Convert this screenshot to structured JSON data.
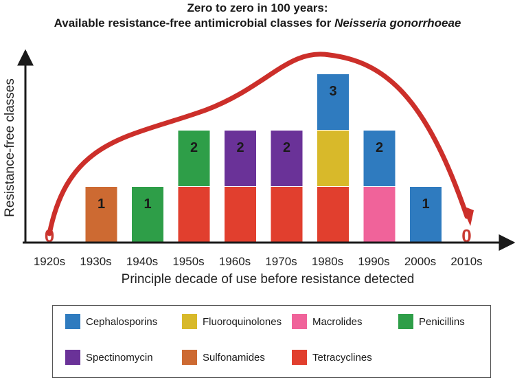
{
  "title_line1": "Zero to zero in 100 years:",
  "title_line2_prefix": "Available resistance-free antimicrobial classes for ",
  "title_line2_italic": "Neisseria gonorrhoeae",
  "colors": {
    "Cephalosporins": "#2f7bbf",
    "Fluoroquinolones": "#d8b92a",
    "Macrolides": "#f0639a",
    "Penicillins": "#2e9e48",
    "Spectinomycin": "#6a3298",
    "Sulfonamides": "#cd6a32",
    "Tetracyclines": "#e13f2e",
    "arrow": "#cc2f2a",
    "zero_label": "#c93a32"
  },
  "chart_data": {
    "type": "bar",
    "stacked": true,
    "categories": [
      "1920s",
      "1930s",
      "1940s",
      "1950s",
      "1960s",
      "1970s",
      "1980s",
      "1990s",
      "2000s",
      "2010s"
    ],
    "xlabel": "Principle decade of use before resistance detected",
    "ylabel": "Resistance-free classes",
    "ylim": [
      0,
      3
    ],
    "totals": [
      0,
      1,
      1,
      2,
      2,
      2,
      3,
      2,
      1,
      0
    ],
    "series": [
      {
        "name": "Tetracyclines",
        "values": [
          0,
          0,
          0,
          1,
          1,
          1,
          1,
          0,
          0,
          0
        ]
      },
      {
        "name": "Macrolides",
        "values": [
          0,
          0,
          0,
          0,
          0,
          0,
          0,
          1,
          0,
          0
        ]
      },
      {
        "name": "Sulfonamides",
        "values": [
          0,
          1,
          0,
          0,
          0,
          0,
          0,
          0,
          0,
          0
        ]
      },
      {
        "name": "Penicillins",
        "values": [
          0,
          0,
          1,
          1,
          0,
          0,
          0,
          0,
          0,
          0
        ]
      },
      {
        "name": "Spectinomycin",
        "values": [
          0,
          0,
          0,
          0,
          1,
          1,
          0,
          0,
          0,
          0
        ]
      },
      {
        "name": "Fluoroquinolones",
        "values": [
          0,
          0,
          0,
          0,
          0,
          0,
          1,
          0,
          0,
          0
        ]
      },
      {
        "name": "Cephalosporins",
        "values": [
          0,
          0,
          0,
          0,
          0,
          0,
          1,
          1,
          1,
          0
        ]
      }
    ],
    "legend": [
      "Cephalosporins",
      "Fluoroquinolones",
      "Macrolides",
      "Penicillins",
      "Spectinomycin",
      "Sulfonamides",
      "Tetracyclines"
    ],
    "legend_position": "bottom"
  }
}
